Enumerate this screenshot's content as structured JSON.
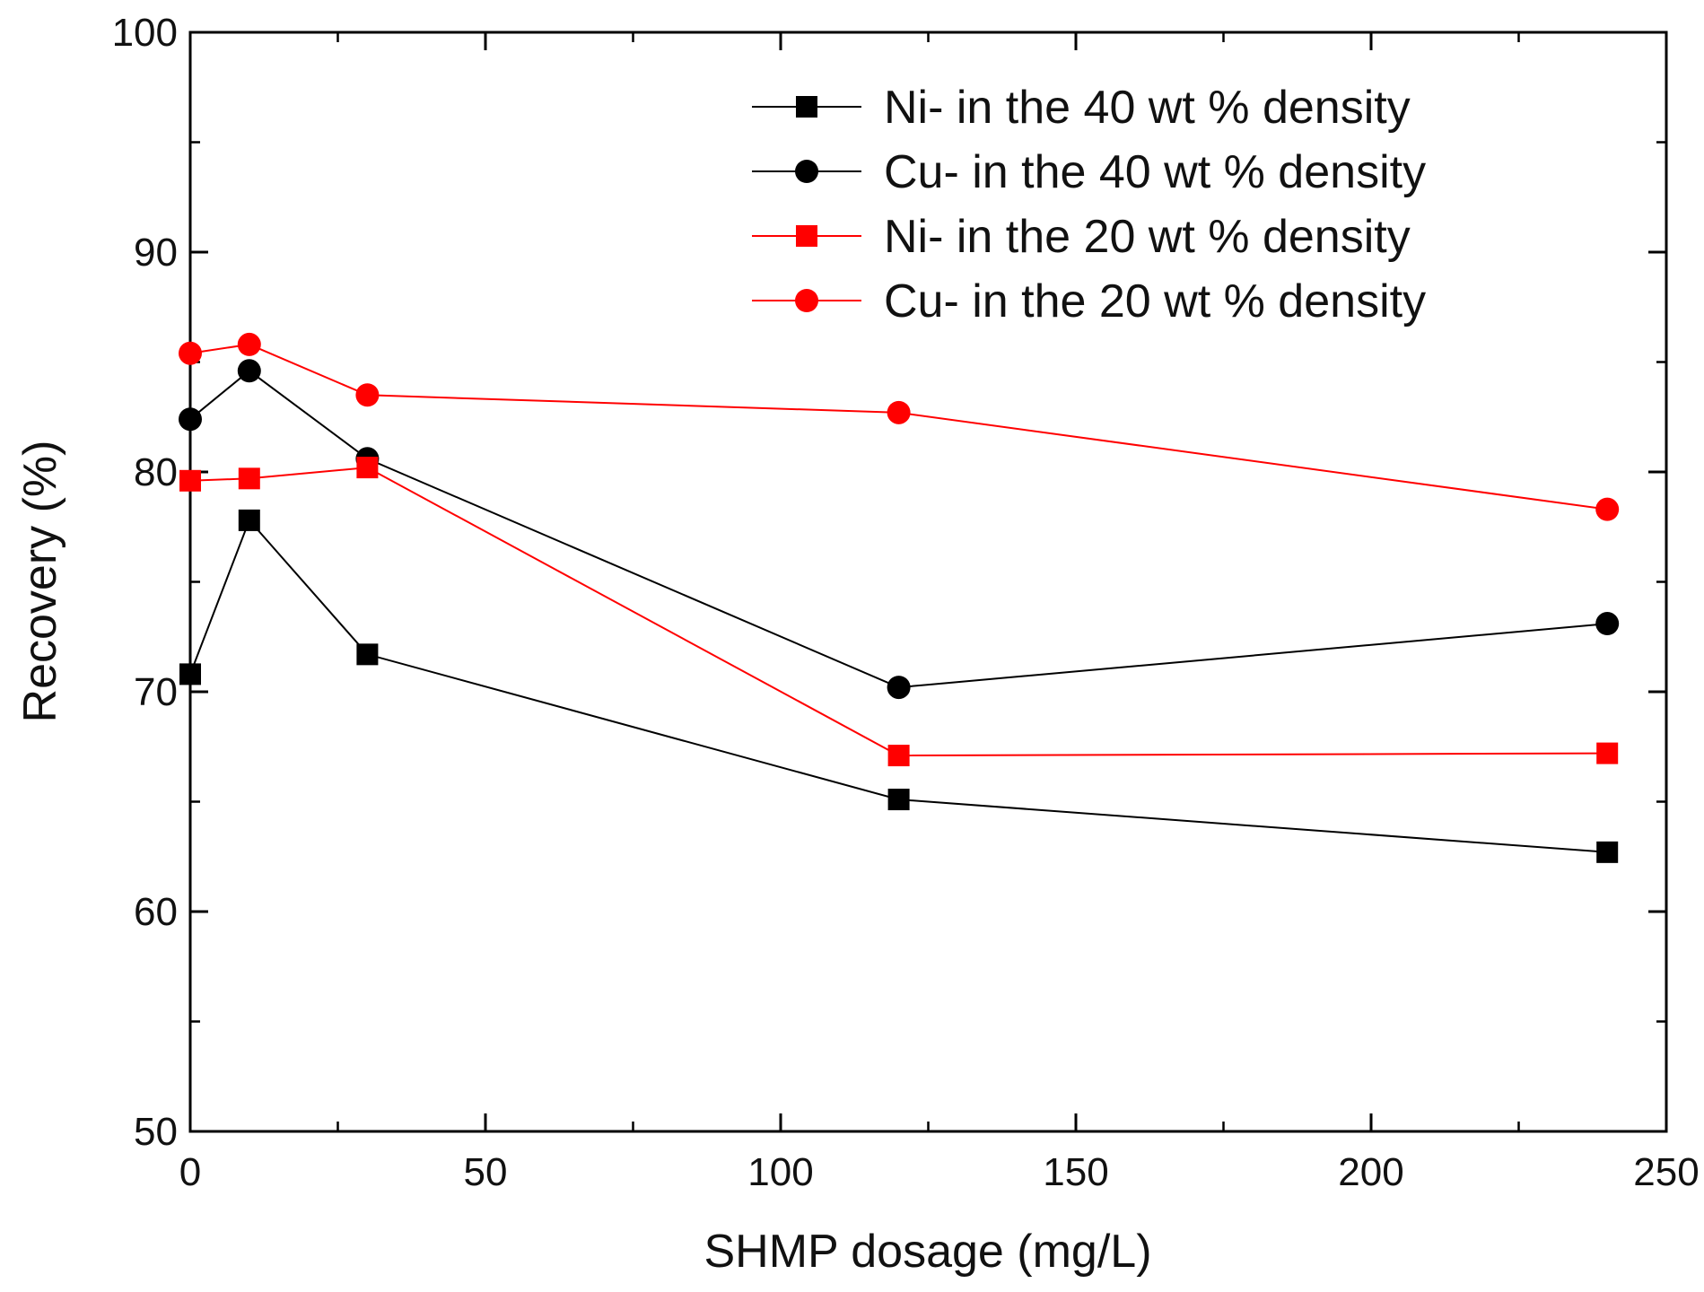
{
  "chart_data": {
    "type": "line",
    "title": "",
    "xlabel": "SHMP dosage (mg/L)",
    "ylabel": "Recovery (%)",
    "xlim": [
      0,
      250
    ],
    "ylim": [
      50,
      100
    ],
    "xticks": [
      0,
      50,
      100,
      150,
      200,
      250
    ],
    "xticks_minor": [
      25,
      75,
      125,
      175,
      225
    ],
    "yticks": [
      50,
      60,
      70,
      80,
      90,
      100
    ],
    "yticks_minor": [
      55,
      65,
      75,
      85,
      95
    ],
    "x": [
      0,
      10,
      30,
      120,
      240
    ],
    "grid": false,
    "legend_position": "top-right",
    "series": [
      {
        "name": "Ni- in the 40 wt % density",
        "color": "#000000",
        "marker": "square",
        "values": [
          70.8,
          77.8,
          71.7,
          65.1,
          62.7
        ]
      },
      {
        "name": "Cu- in the 40 wt % density",
        "color": "#000000",
        "marker": "circle",
        "values": [
          82.4,
          84.6,
          80.6,
          70.2,
          73.1
        ]
      },
      {
        "name": "Ni- in the 20 wt % density",
        "color": "#ff0000",
        "marker": "square",
        "values": [
          79.6,
          79.7,
          80.2,
          67.1,
          67.2
        ]
      },
      {
        "name": "Cu- in the 20 wt % density",
        "color": "#ff0000",
        "marker": "circle",
        "values": [
          85.4,
          85.8,
          83.5,
          82.7,
          78.3
        ]
      }
    ]
  }
}
